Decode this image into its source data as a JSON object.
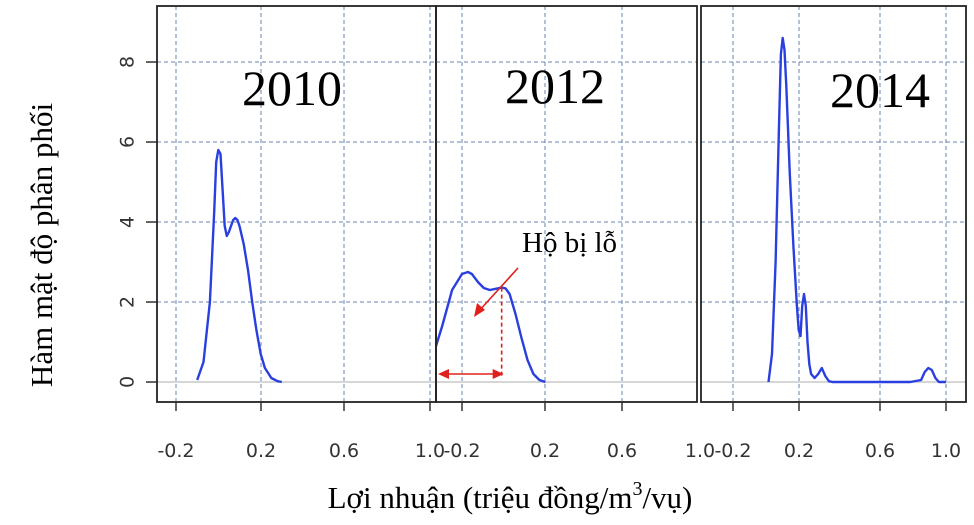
{
  "chart_data": {
    "type": "line",
    "ylabel": "Hàm mật độ phân phối",
    "xlabel_main": "Lợi nhuận (triệu đồng/m",
    "xlabel_sup": "3",
    "xlabel_end": "/vụ)",
    "ylim": [
      0,
      9
    ],
    "y_ticks": [
      "0",
      "2",
      "4",
      "6",
      "8"
    ],
    "grid": true,
    "line_color": "#2a3fe0",
    "grid_color": "#6a86b0",
    "annotation_color": "#e0201c",
    "panels": [
      {
        "title": "2010",
        "xlim": [
          -0.3,
          1.0
        ],
        "x_ticks": [
          "-0.2",
          "0.2",
          "0.6",
          "1.0"
        ],
        "series": {
          "x": [
            -0.1,
            -0.07,
            -0.04,
            -0.02,
            -0.01,
            0.0,
            0.01,
            0.02,
            0.03,
            0.04,
            0.05,
            0.06,
            0.07,
            0.08,
            0.09,
            0.1,
            0.12,
            0.14,
            0.16,
            0.18,
            0.2,
            0.22,
            0.25,
            0.28,
            0.3
          ],
          "y": [
            0.05,
            0.5,
            2.0,
            4.2,
            5.5,
            5.8,
            5.7,
            4.8,
            3.9,
            3.65,
            3.75,
            3.9,
            4.05,
            4.1,
            4.05,
            3.9,
            3.45,
            2.8,
            2.0,
            1.3,
            0.7,
            0.35,
            0.1,
            0.02,
            0.0
          ]
        }
      },
      {
        "title": "2012",
        "xlim": [
          -0.35,
          1.0
        ],
        "x_ticks": [
          "-0.2",
          "0.2",
          "0.6",
          "1.0"
        ],
        "annotation": "Hộ bị lỗ",
        "series": {
          "x": [
            -0.35,
            -0.3,
            -0.25,
            -0.2,
            -0.17,
            -0.15,
            -0.12,
            -0.09,
            -0.06,
            -0.03,
            0.0,
            0.02,
            0.04,
            0.07,
            0.1,
            0.13,
            0.16,
            0.19,
            0.22
          ],
          "y": [
            0.6,
            1.4,
            2.3,
            2.7,
            2.75,
            2.7,
            2.5,
            2.35,
            2.3,
            2.33,
            2.36,
            2.34,
            2.2,
            1.7,
            1.1,
            0.55,
            0.2,
            0.05,
            0.0
          ]
        }
      },
      {
        "title": "2014",
        "xlim": [
          -0.3,
          1.0
        ],
        "x_ticks": [
          "-0.2",
          "0.2",
          "0.6",
          "1.0"
        ],
        "series": {
          "x": [
            0.0,
            0.02,
            0.04,
            0.06,
            0.07,
            0.08,
            0.09,
            0.1,
            0.12,
            0.14,
            0.16,
            0.17,
            0.18,
            0.19,
            0.2,
            0.21,
            0.22,
            0.23,
            0.24,
            0.26,
            0.28,
            0.3,
            0.32,
            0.34,
            0.36,
            0.4,
            0.5,
            0.6,
            0.7,
            0.8,
            0.86,
            0.88,
            0.9,
            0.92,
            0.94,
            0.96,
            1.0
          ],
          "y": [
            0.0,
            0.7,
            3.0,
            6.5,
            8.2,
            8.6,
            8.3,
            7.4,
            5.2,
            3.4,
            1.9,
            1.3,
            1.15,
            1.9,
            2.2,
            1.9,
            1.0,
            0.45,
            0.2,
            0.1,
            0.2,
            0.35,
            0.15,
            0.02,
            0.0,
            0.0,
            0.0,
            0.0,
            0.0,
            0.0,
            0.05,
            0.25,
            0.35,
            0.3,
            0.1,
            0.0,
            0.0
          ]
        }
      }
    ]
  }
}
